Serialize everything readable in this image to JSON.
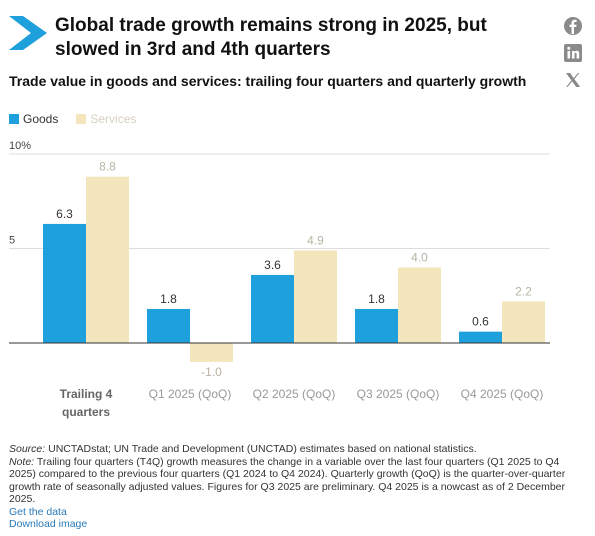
{
  "header": {
    "title": "Global trade growth remains strong in 2025, but slowed in 3rd and 4th quarters",
    "subtitle": "Trade value in goods and services: trailing four quarters and quarterly growth"
  },
  "social": [
    "facebook-icon",
    "linkedin-icon",
    "x-icon"
  ],
  "colors": {
    "goods": "#1ea0dc",
    "services": "#f3e6bd",
    "logo": "#1ea0dc"
  },
  "chart_data": {
    "type": "bar",
    "categories": [
      "Trailing 4 quarters",
      "Q1 2025 (QoQ)",
      "Q2 2025 (QoQ)",
      "Q3 2025 (QoQ)",
      "Q4 2025 (QoQ)"
    ],
    "category_lines": [
      [
        "Trailing 4",
        "quarters"
      ],
      [
        "Q1 2025 (QoQ)"
      ],
      [
        "Q2 2025 (QoQ)"
      ],
      [
        "Q3 2025 (QoQ)"
      ],
      [
        "Q4 2025 (QoQ)"
      ]
    ],
    "series": [
      {
        "name": "Goods",
        "values": [
          6.3,
          1.8,
          3.6,
          1.8,
          0.6
        ],
        "labels": [
          "6.3",
          "1.8",
          "3.6",
          "1.8",
          "0.6"
        ]
      },
      {
        "name": "Services",
        "values": [
          8.8,
          -1.0,
          4.9,
          4.0,
          2.2
        ],
        "labels": [
          "8.8",
          "-1.0",
          "4.9",
          "4.0",
          "2.2"
        ]
      }
    ],
    "yticks": [
      {
        "value": 10,
        "label": "10%"
      },
      {
        "value": 5,
        "label": "5"
      }
    ],
    "ylim": [
      -1,
      10
    ],
    "legend_position": "top-left"
  },
  "footer": {
    "source_prefix": "Source:",
    "source": " UNCTADstat; UN Trade and Development (UNCTAD) estimates based on national statistics.",
    "note_prefix": "Note:",
    "note": " Trailing four quarters (T4Q) growth measures the change in a variable over the last four quarters (Q1 2025 to Q4 2025) compared to the previous four quarters (Q1 2024 to Q4 2024). Quarterly growth (QoQ) is the quarter-over-quarter growth rate of seasonally adjusted values. Figures for Q3 2025 are preliminary. Q4 2025 is a nowcast as of 2 December 2025.",
    "get_data": "Get the data",
    "download_image": "Download image"
  }
}
